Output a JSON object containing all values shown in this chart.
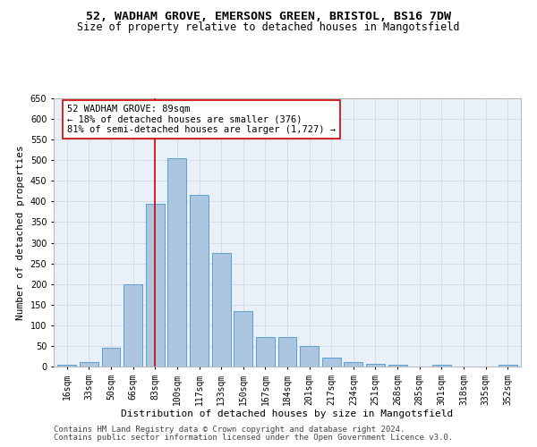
{
  "title_line1": "52, WADHAM GROVE, EMERSONS GREEN, BRISTOL, BS16 7DW",
  "title_line2": "Size of property relative to detached houses in Mangotsfield",
  "xlabel": "Distribution of detached houses by size in Mangotsfield",
  "ylabel": "Number of detached properties",
  "categories": [
    "16sqm",
    "33sqm",
    "50sqm",
    "66sqm",
    "83sqm",
    "100sqm",
    "117sqm",
    "133sqm",
    "150sqm",
    "167sqm",
    "184sqm",
    "201sqm",
    "217sqm",
    "234sqm",
    "251sqm",
    "268sqm",
    "285sqm",
    "301sqm",
    "318sqm",
    "335sqm",
    "352sqm"
  ],
  "values": [
    5,
    10,
    45,
    200,
    395,
    505,
    415,
    275,
    135,
    72,
    72,
    50,
    22,
    10,
    7,
    5,
    0,
    5,
    0,
    0,
    5
  ],
  "bar_color": "#adc6e0",
  "bar_edge_color": "#5a9fd4",
  "vline_x_idx": 4,
  "vline_color": "#cc0000",
  "annotation_text": "52 WADHAM GROVE: 89sqm\n← 18% of detached houses are smaller (376)\n81% of semi-detached houses are larger (1,727) →",
  "annotation_box_color": "#ffffff",
  "annotation_box_edge": "#cc0000",
  "ylim": [
    0,
    650
  ],
  "yticks": [
    0,
    50,
    100,
    150,
    200,
    250,
    300,
    350,
    400,
    450,
    500,
    550,
    600,
    650
  ],
  "grid_color": "#d0d8e8",
  "bg_color": "#eaf0f8",
  "footer1": "Contains HM Land Registry data © Crown copyright and database right 2024.",
  "footer2": "Contains public sector information licensed under the Open Government Licence v3.0.",
  "title_fontsize": 9.5,
  "subtitle_fontsize": 8.5,
  "axis_label_fontsize": 8,
  "tick_fontsize": 7,
  "annotation_fontsize": 7.5,
  "footer_fontsize": 6.5
}
